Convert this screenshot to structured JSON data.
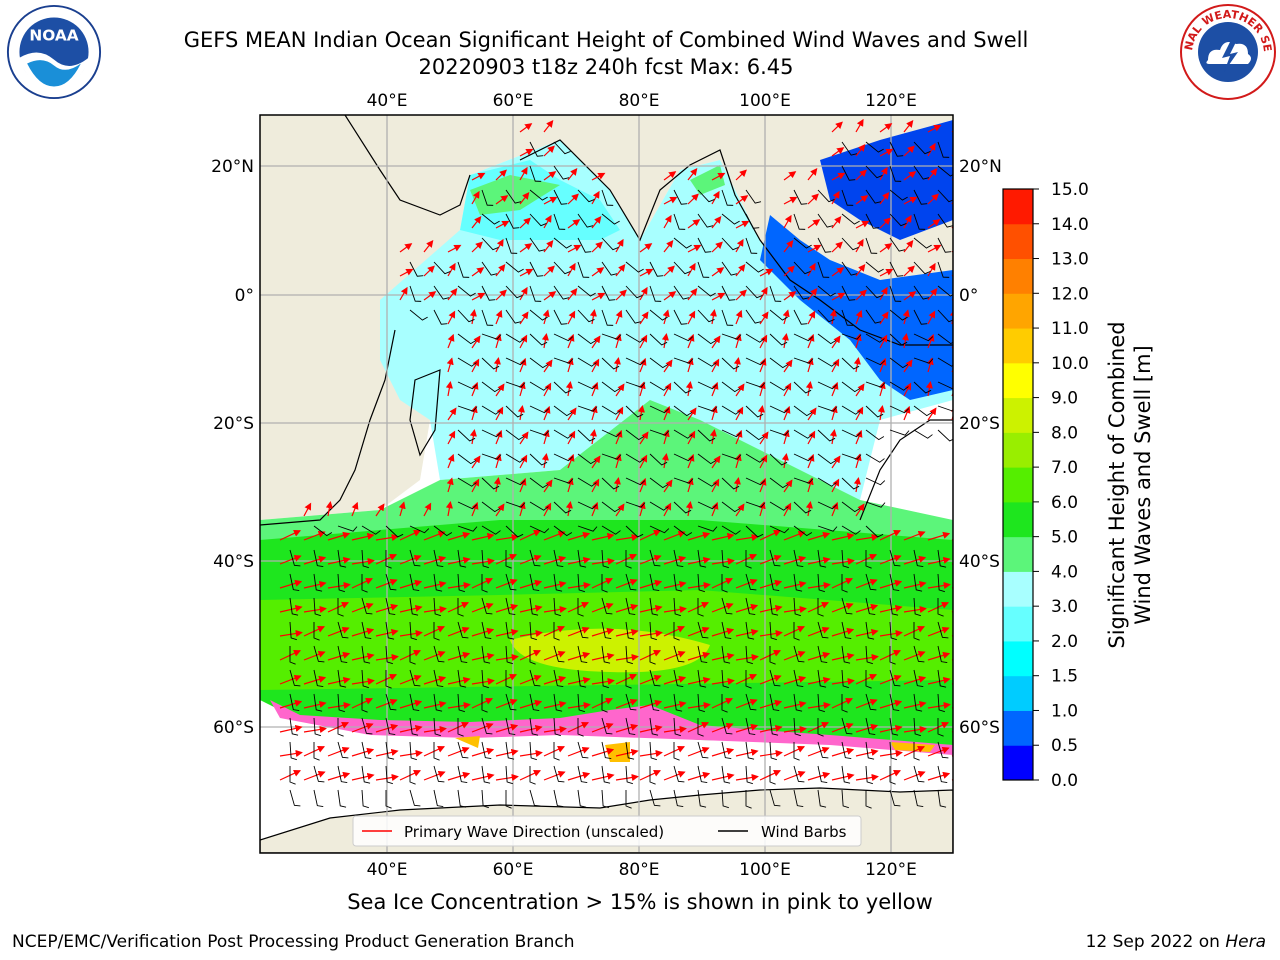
{
  "header": {
    "title_line1": "GEFS MEAN Indian Ocean Significant Height of Combined Wind Waves and Swell",
    "title_line2": "20220903 t18z 240h fcst   Max: 6.45"
  },
  "logos": {
    "left": {
      "name": "noaa-logo",
      "text": "NOAA"
    },
    "right": {
      "name": "nws-logo",
      "text": "NATIONAL WEATHER SERVICE"
    }
  },
  "map": {
    "lon_ticks": [
      "40°E",
      "60°E",
      "80°E",
      "100°E",
      "120°E"
    ],
    "lat_ticks": [
      "20°N",
      "0°",
      "20°S",
      "40°S",
      "60°S"
    ],
    "legend": {
      "wave_direction": "Primary Wave Direction (unscaled)",
      "wind_barbs": "Wind Barbs"
    },
    "colors": {
      "land": "#efecdc",
      "ocean_background": "#ffffff",
      "arrow": "#ff0000",
      "barb": "#000000"
    }
  },
  "colorbar": {
    "label_line1": "Significant Height of Combined",
    "label_line2": "Wind Waves and Swell [m]",
    "ticks": [
      "0.0",
      "0.5",
      "1.0",
      "1.5",
      "2.0",
      "3.0",
      "4.0",
      "5.0",
      "6.0",
      "7.0",
      "8.0",
      "9.0",
      "10.0",
      "11.0",
      "12.0",
      "13.0",
      "14.0",
      "15.0"
    ],
    "colors": [
      "#0000ff",
      "#0066ff",
      "#00ccff",
      "#00ffff",
      "#66ffff",
      "#a8ffff",
      "#5cf57a",
      "#1ee61e",
      "#55ee00",
      "#99ee00",
      "#ccf200",
      "#ffff00",
      "#ffcc00",
      "#ffa500",
      "#ff8000",
      "#ff5000",
      "#ff1a00"
    ]
  },
  "caption": "Sea Ice Concentration > 15% is shown in pink to yellow",
  "footer": {
    "left": "NCEP/EMC/Verification Post Processing Product Generation Branch",
    "right_prefix": "12 Sep 2022 on ",
    "right_host": "Hera"
  }
}
